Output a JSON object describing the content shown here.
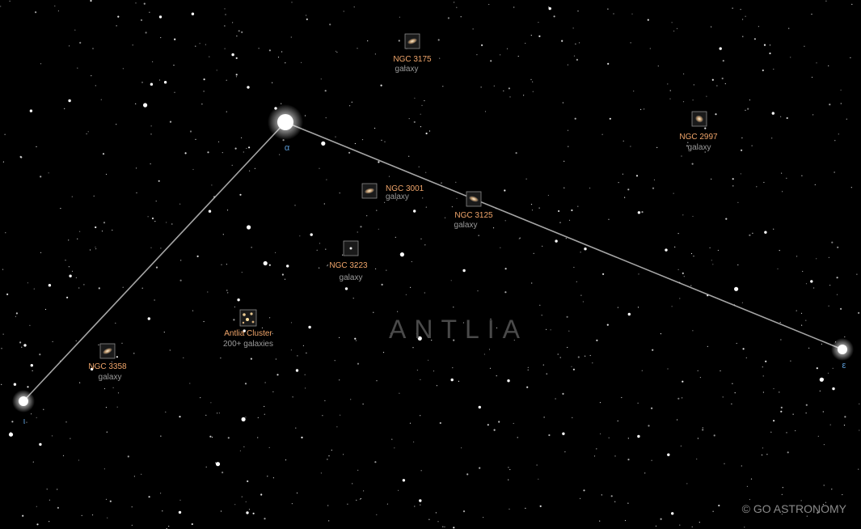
{
  "constellation": {
    "name": "ANTLIA"
  },
  "credit": "© GO ASTRONOMY",
  "stars": [
    {
      "id": "alpha",
      "label": "α"
    },
    {
      "id": "epsilon",
      "label": "ε"
    },
    {
      "id": "iota",
      "label": "ι"
    }
  ],
  "objects": [
    {
      "id": "ngc-3175",
      "name": "NGC 3175",
      "type": "galaxy",
      "icon": "galaxy-icon"
    },
    {
      "id": "ngc-2997",
      "name": "NGC 2997",
      "type": "galaxy",
      "icon": "galaxy-icon"
    },
    {
      "id": "ngc-3001",
      "name": "NGC 3001",
      "type": "galaxy",
      "icon": "galaxy-icon"
    },
    {
      "id": "ngc-3125",
      "name": "NGC 3125",
      "type": "galaxy",
      "icon": "galaxy-icon"
    },
    {
      "id": "ngc-3223",
      "name": "NGC 3223",
      "type": "galaxy",
      "icon": "galaxy-icon"
    },
    {
      "id": "antlia-cluster",
      "name": "Antlia Cluster",
      "type": "200+ galaxies",
      "icon": "galaxy-cluster-icon"
    },
    {
      "id": "ngc-3358",
      "name": "NGC 3358",
      "type": "galaxy",
      "icon": "galaxy-icon"
    }
  ],
  "colors": {
    "background": "#000000",
    "line": "#cfcfcf",
    "object_name": "#f0a56a",
    "object_type": "#9a9a9a",
    "star_label": "#5b9bd5"
  }
}
